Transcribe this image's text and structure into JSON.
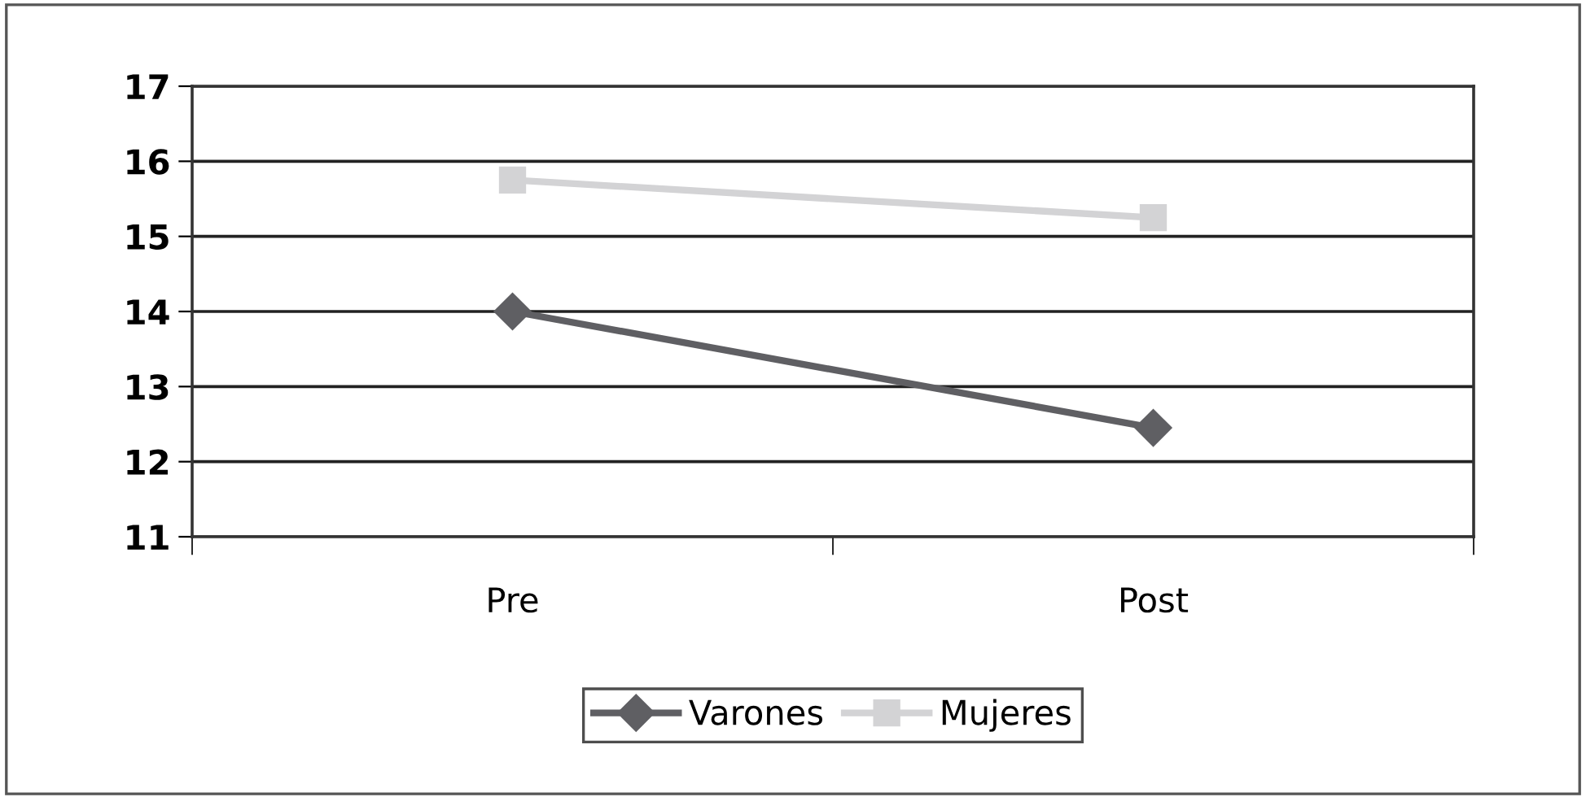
{
  "chart_data": {
    "type": "line",
    "categories": [
      "Pre",
      "Post"
    ],
    "series": [
      {
        "name": "Varones",
        "color": "#5f5f63",
        "values": [
          14.0,
          12.45
        ],
        "marker": "diamond"
      },
      {
        "name": "Mujeres",
        "color": "#d3d3d5",
        "values": [
          15.75,
          15.25
        ],
        "marker": "square"
      }
    ],
    "ylim": [
      11,
      17
    ],
    "yticks": [
      11,
      12,
      13,
      14,
      15,
      16,
      17
    ],
    "grid": "y",
    "legend": "bottom",
    "line_style": "solid"
  }
}
